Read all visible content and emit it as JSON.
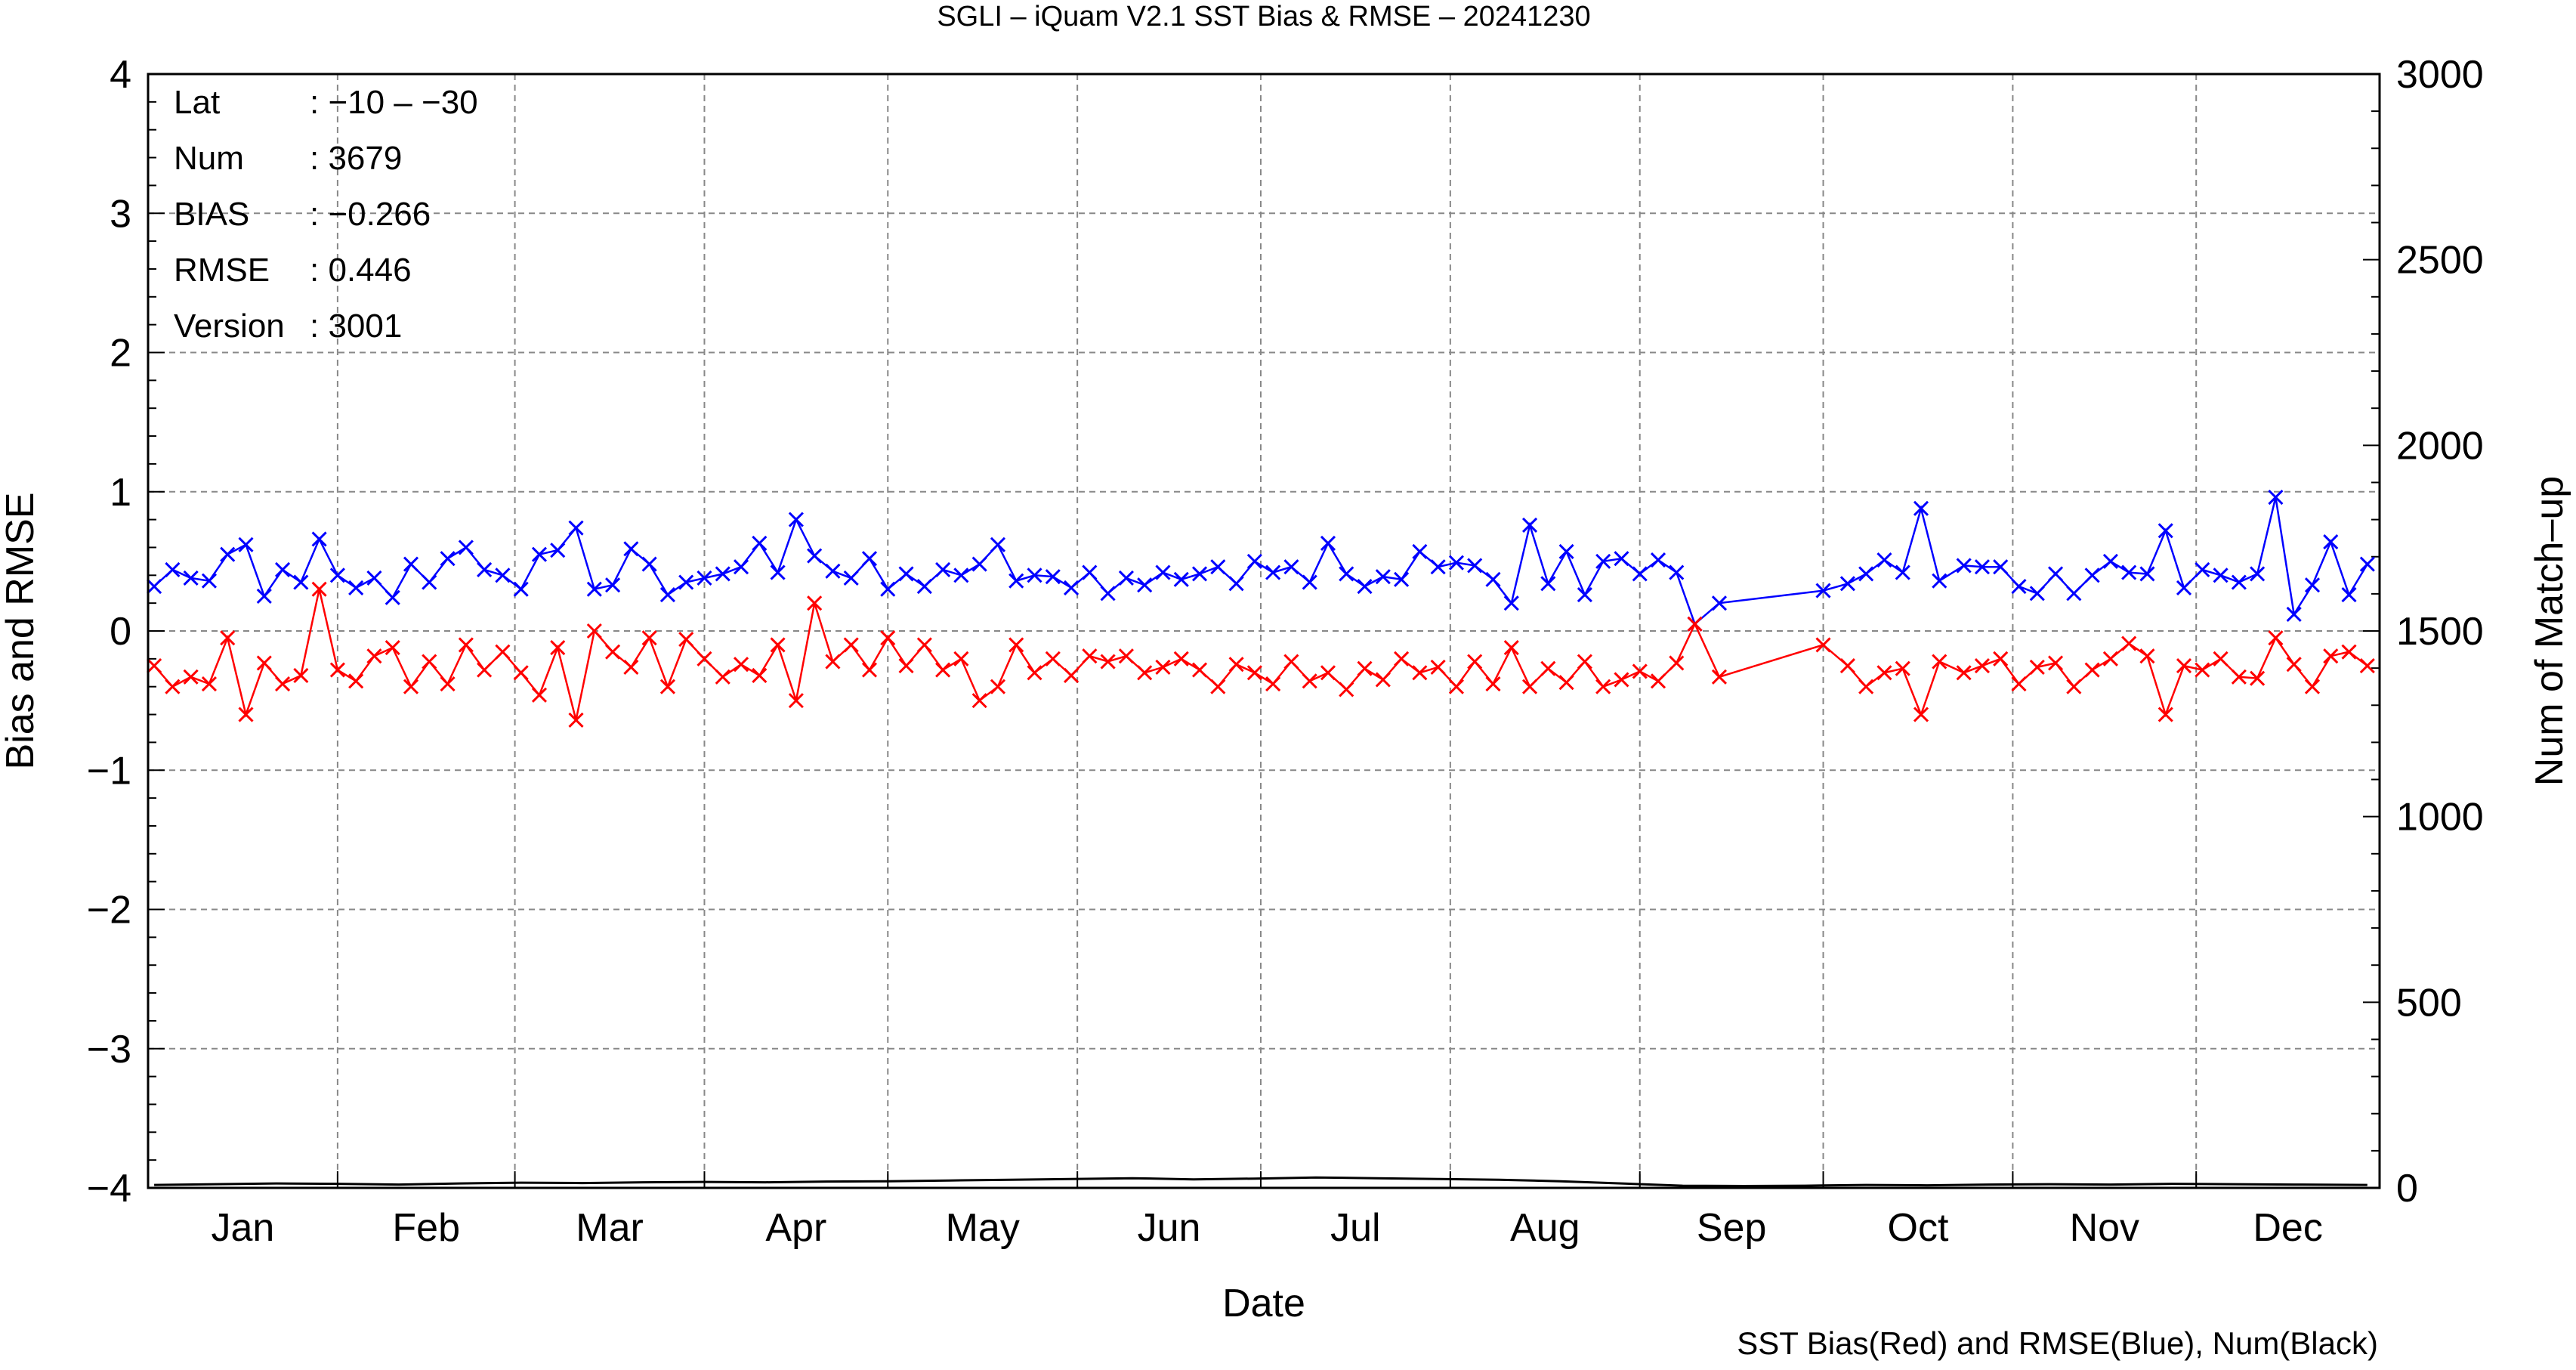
{
  "chart_data": {
    "type": "line",
    "title": "SGLI – iQuam V2.1 SST Bias & RMSE  – 20241230",
    "xlabel": "Date",
    "ylabel": "Bias and RMSE",
    "y2label": "Num of Match–up",
    "footnote": "SST Bias(Red) and RMSE(Blue), Num(Black)",
    "ylim": [
      -4,
      4
    ],
    "y2lim": [
      0,
      3000
    ],
    "xlim": [
      "2024-01-01",
      "2024-12-31"
    ],
    "grid": true,
    "y_ticks": [
      "4",
      "3",
      "2",
      "1",
      "0",
      "−1",
      "−2",
      "−3",
      "−4"
    ],
    "y2_ticks": [
      "3000",
      "2500",
      "2000",
      "1500",
      "1000",
      "500",
      "0"
    ],
    "month_labels": [
      "Jan",
      "Feb",
      "Mar",
      "Apr",
      "May",
      "Jun",
      "Jul",
      "Aug",
      "Sep",
      "Oct",
      "Nov",
      "Dec"
    ],
    "stats": [
      {
        "key": "Lat",
        "value": ": −10 – −30"
      },
      {
        "key": "Num",
        "value": ": 3679"
      },
      {
        "key": "BIAS",
        "value": ": −0.266"
      },
      {
        "key": "RMSE",
        "value": ": 0.446"
      },
      {
        "key": "Version",
        "value": ": 3001"
      }
    ],
    "series": [
      {
        "name": "RMSE",
        "color": "#0000ff",
        "marker": "x",
        "x": [
          "2024-01-02",
          "2024-01-05",
          "2024-01-08",
          "2024-01-11",
          "2024-01-14",
          "2024-01-17",
          "2024-01-20",
          "2024-01-23",
          "2024-01-26",
          "2024-01-29",
          "2024-02-01",
          "2024-02-04",
          "2024-02-07",
          "2024-02-10",
          "2024-02-13",
          "2024-02-16",
          "2024-02-19",
          "2024-02-22",
          "2024-02-25",
          "2024-02-28",
          "2024-03-02",
          "2024-03-05",
          "2024-03-08",
          "2024-03-11",
          "2024-03-14",
          "2024-03-17",
          "2024-03-20",
          "2024-03-23",
          "2024-03-26",
          "2024-03-29",
          "2024-04-01",
          "2024-04-04",
          "2024-04-07",
          "2024-04-10",
          "2024-04-13",
          "2024-04-16",
          "2024-04-19",
          "2024-04-22",
          "2024-04-25",
          "2024-04-28",
          "2024-05-01",
          "2024-05-04",
          "2024-05-07",
          "2024-05-10",
          "2024-05-13",
          "2024-05-16",
          "2024-05-19",
          "2024-05-22",
          "2024-05-25",
          "2024-05-28",
          "2024-05-31",
          "2024-06-03",
          "2024-06-06",
          "2024-06-09",
          "2024-06-12",
          "2024-06-15",
          "2024-06-18",
          "2024-06-21",
          "2024-06-24",
          "2024-06-27",
          "2024-06-30",
          "2024-07-03",
          "2024-07-06",
          "2024-07-09",
          "2024-07-12",
          "2024-07-15",
          "2024-07-18",
          "2024-07-21",
          "2024-07-24",
          "2024-07-27",
          "2024-07-30",
          "2024-08-02",
          "2024-08-05",
          "2024-08-08",
          "2024-08-11",
          "2024-08-14",
          "2024-08-17",
          "2024-08-20",
          "2024-08-23",
          "2024-08-26",
          "2024-08-29",
          "2024-09-01",
          "2024-09-04",
          "2024-09-07",
          "2024-09-10",
          "2024-09-14",
          "2024-10-01",
          "2024-10-05",
          "2024-10-08",
          "2024-10-11",
          "2024-10-14",
          "2024-10-17",
          "2024-10-20",
          "2024-10-24",
          "2024-10-27",
          "2024-10-30",
          "2024-11-02",
          "2024-11-05",
          "2024-11-08",
          "2024-11-11",
          "2024-11-14",
          "2024-11-17",
          "2024-11-20",
          "2024-11-23",
          "2024-11-26",
          "2024-11-29",
          "2024-12-02",
          "2024-12-05",
          "2024-12-08",
          "2024-12-11",
          "2024-12-14",
          "2024-12-17",
          "2024-12-20",
          "2024-12-23",
          "2024-12-26",
          "2024-12-29"
        ],
        "y": [
          0.32,
          0.44,
          0.38,
          0.36,
          0.55,
          0.62,
          0.25,
          0.44,
          0.35,
          0.66,
          0.4,
          0.31,
          0.38,
          0.24,
          0.48,
          0.35,
          0.52,
          0.6,
          0.44,
          0.4,
          0.3,
          0.55,
          0.58,
          0.74,
          0.3,
          0.33,
          0.59,
          0.48,
          0.26,
          0.35,
          0.38,
          0.41,
          0.46,
          0.63,
          0.42,
          0.8,
          0.54,
          0.43,
          0.38,
          0.52,
          0.3,
          0.41,
          0.32,
          0.44,
          0.4,
          0.48,
          0.62,
          0.36,
          0.4,
          0.39,
          0.31,
          0.42,
          0.27,
          0.38,
          0.33,
          0.42,
          0.37,
          0.41,
          0.46,
          0.34,
          0.5,
          0.42,
          0.46,
          0.35,
          0.63,
          0.41,
          0.32,
          0.39,
          0.37,
          0.57,
          0.46,
          0.49,
          0.47,
          0.37,
          0.2,
          0.76,
          0.34,
          0.57,
          0.26,
          0.5,
          0.52,
          0.41,
          0.51,
          0.42,
          0.05,
          0.2,
          0.29,
          0.34,
          0.41,
          0.51,
          0.42,
          0.88,
          0.36,
          0.47,
          0.46,
          0.46,
          0.32,
          0.27,
          0.41,
          0.27,
          0.4,
          0.5,
          0.42,
          0.41,
          0.72,
          0.31,
          0.44,
          0.4,
          0.35,
          0.41,
          0.96,
          0.12,
          0.33,
          0.64,
          0.26,
          0.48
        ]
      },
      {
        "name": "Bias",
        "color": "#ff0000",
        "marker": "x",
        "x": [
          "2024-01-02",
          "2024-01-05",
          "2024-01-08",
          "2024-01-11",
          "2024-01-14",
          "2024-01-17",
          "2024-01-20",
          "2024-01-23",
          "2024-01-26",
          "2024-01-29",
          "2024-02-01",
          "2024-02-04",
          "2024-02-07",
          "2024-02-10",
          "2024-02-13",
          "2024-02-16",
          "2024-02-19",
          "2024-02-22",
          "2024-02-25",
          "2024-02-28",
          "2024-03-02",
          "2024-03-05",
          "2024-03-08",
          "2024-03-11",
          "2024-03-14",
          "2024-03-17",
          "2024-03-20",
          "2024-03-23",
          "2024-03-26",
          "2024-03-29",
          "2024-04-01",
          "2024-04-04",
          "2024-04-07",
          "2024-04-10",
          "2024-04-13",
          "2024-04-16",
          "2024-04-19",
          "2024-04-22",
          "2024-04-25",
          "2024-04-28",
          "2024-05-01",
          "2024-05-04",
          "2024-05-07",
          "2024-05-10",
          "2024-05-13",
          "2024-05-16",
          "2024-05-19",
          "2024-05-22",
          "2024-05-25",
          "2024-05-28",
          "2024-05-31",
          "2024-06-03",
          "2024-06-06",
          "2024-06-09",
          "2024-06-12",
          "2024-06-15",
          "2024-06-18",
          "2024-06-21",
          "2024-06-24",
          "2024-06-27",
          "2024-06-30",
          "2024-07-03",
          "2024-07-06",
          "2024-07-09",
          "2024-07-12",
          "2024-07-15",
          "2024-07-18",
          "2024-07-21",
          "2024-07-24",
          "2024-07-27",
          "2024-07-30",
          "2024-08-02",
          "2024-08-05",
          "2024-08-08",
          "2024-08-11",
          "2024-08-14",
          "2024-08-17",
          "2024-08-20",
          "2024-08-23",
          "2024-08-26",
          "2024-08-29",
          "2024-09-01",
          "2024-09-04",
          "2024-09-07",
          "2024-09-10",
          "2024-09-14",
          "2024-10-01",
          "2024-10-05",
          "2024-10-08",
          "2024-10-11",
          "2024-10-14",
          "2024-10-17",
          "2024-10-20",
          "2024-10-24",
          "2024-10-27",
          "2024-10-30",
          "2024-11-02",
          "2024-11-05",
          "2024-11-08",
          "2024-11-11",
          "2024-11-14",
          "2024-11-17",
          "2024-11-20",
          "2024-11-23",
          "2024-11-26",
          "2024-11-29",
          "2024-12-02",
          "2024-12-05",
          "2024-12-08",
          "2024-12-11",
          "2024-12-14",
          "2024-12-17",
          "2024-12-20",
          "2024-12-23",
          "2024-12-26",
          "2024-12-29"
        ],
        "y": [
          -0.25,
          -0.4,
          -0.33,
          -0.38,
          -0.05,
          -0.6,
          -0.23,
          -0.38,
          -0.32,
          0.3,
          -0.28,
          -0.36,
          -0.18,
          -0.12,
          -0.4,
          -0.22,
          -0.38,
          -0.1,
          -0.28,
          -0.15,
          -0.3,
          -0.46,
          -0.12,
          -0.64,
          0.0,
          -0.15,
          -0.26,
          -0.05,
          -0.4,
          -0.06,
          -0.2,
          -0.33,
          -0.24,
          -0.32,
          -0.1,
          -0.5,
          0.2,
          -0.22,
          -0.1,
          -0.28,
          -0.05,
          -0.25,
          -0.1,
          -0.28,
          -0.2,
          -0.5,
          -0.4,
          -0.1,
          -0.3,
          -0.2,
          -0.32,
          -0.18,
          -0.22,
          -0.18,
          -0.3,
          -0.26,
          -0.2,
          -0.28,
          -0.4,
          -0.24,
          -0.3,
          -0.38,
          -0.22,
          -0.36,
          -0.3,
          -0.42,
          -0.27,
          -0.35,
          -0.2,
          -0.3,
          -0.26,
          -0.4,
          -0.22,
          -0.38,
          -0.12,
          -0.4,
          -0.27,
          -0.37,
          -0.22,
          -0.4,
          -0.35,
          -0.29,
          -0.36,
          -0.23,
          0.05,
          -0.33,
          -0.1,
          -0.25,
          -0.4,
          -0.3,
          -0.27,
          -0.6,
          -0.22,
          -0.3,
          -0.25,
          -0.2,
          -0.38,
          -0.26,
          -0.23,
          -0.4,
          -0.28,
          -0.2,
          -0.09,
          -0.18,
          -0.6,
          -0.25,
          -0.28,
          -0.2,
          -0.33,
          -0.34,
          -0.05,
          -0.24,
          -0.4,
          -0.18,
          -0.15,
          -0.25
        ]
      },
      {
        "name": "Num",
        "color": "#000000",
        "axis": "y2",
        "x": [
          "2024-01-02",
          "2024-01-12",
          "2024-01-22",
          "2024-02-01",
          "2024-02-11",
          "2024-02-21",
          "2024-03-02",
          "2024-03-12",
          "2024-03-22",
          "2024-04-01",
          "2024-04-11",
          "2024-04-21",
          "2024-05-01",
          "2024-05-11",
          "2024-05-21",
          "2024-05-31",
          "2024-06-10",
          "2024-06-20",
          "2024-06-30",
          "2024-07-10",
          "2024-07-20",
          "2024-07-30",
          "2024-08-09",
          "2024-08-19",
          "2024-08-29",
          "2024-09-08",
          "2024-09-18",
          "2024-09-28",
          "2024-10-08",
          "2024-10-18",
          "2024-10-28",
          "2024-11-07",
          "2024-11-17",
          "2024-11-27",
          "2024-12-07",
          "2024-12-17",
          "2024-12-29"
        ],
        "y": [
          8,
          10,
          12,
          11,
          9,
          12,
          14,
          13,
          15,
          16,
          15,
          17,
          18,
          20,
          22,
          24,
          26,
          23,
          25,
          28,
          26,
          24,
          22,
          18,
          12,
          6,
          5,
          6,
          8,
          7,
          9,
          10,
          9,
          11,
          10,
          9,
          8
        ]
      }
    ]
  }
}
